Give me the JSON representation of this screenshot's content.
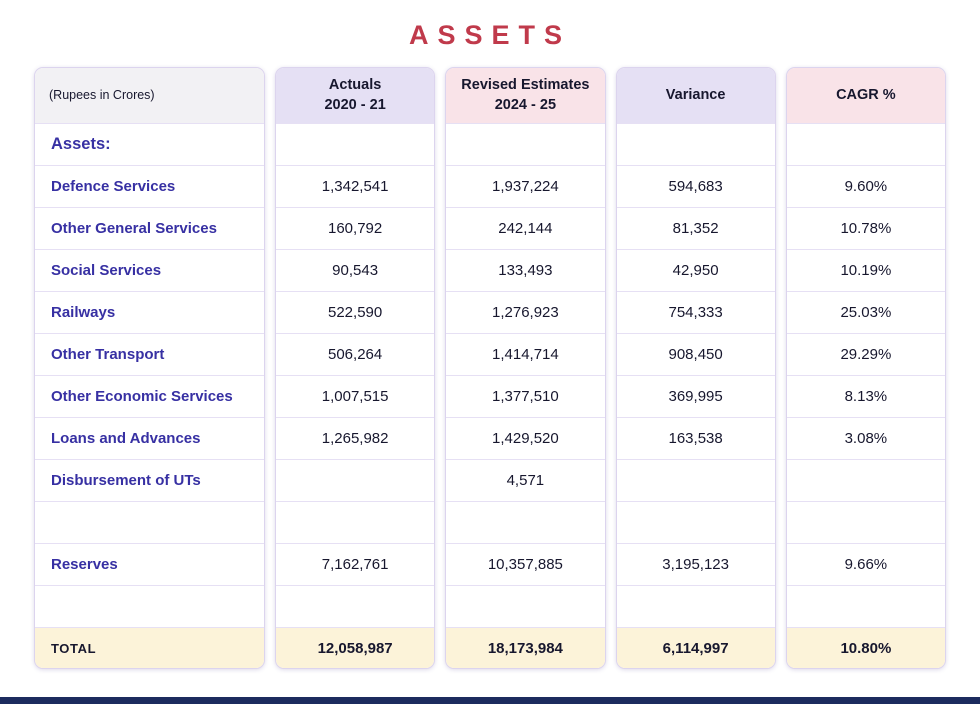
{
  "title": "ASSETS",
  "colors": {
    "title": "#C03A4B",
    "row_label": "#3730A3",
    "header_lavender": "#E5E0F4",
    "header_pink": "#F9E3E8",
    "header_gray": "#F2F1F4",
    "total_background": "#FCF3D9",
    "footer_bar": "#1C2B5E"
  },
  "table": {
    "columns": [
      {
        "line1": "(Rupees in Crores)",
        "line2": ""
      },
      {
        "line1": "Actuals",
        "line2": "2020 - 21"
      },
      {
        "line1": "Revised Estimates",
        "line2": "2024 - 25"
      },
      {
        "line1": "Variance",
        "line2": ""
      },
      {
        "line1": "CAGR %",
        "line2": ""
      }
    ],
    "rows": [
      {
        "label": "Assets:",
        "actuals": "",
        "revised": "",
        "variance": "",
        "cagr": ""
      },
      {
        "label": "Defence Services",
        "actuals": "1,342,541",
        "revised": "1,937,224",
        "variance": "594,683",
        "cagr": "9.60%"
      },
      {
        "label": "Other General Services",
        "actuals": "160,792",
        "revised": "242,144",
        "variance": "81,352",
        "cagr": "10.78%"
      },
      {
        "label": "Social Services",
        "actuals": "90,543",
        "revised": "133,493",
        "variance": "42,950",
        "cagr": "10.19%"
      },
      {
        "label": "Railways",
        "actuals": "522,590",
        "revised": "1,276,923",
        "variance": "754,333",
        "cagr": "25.03%"
      },
      {
        "label": "Other Transport",
        "actuals": "506,264",
        "revised": "1,414,714",
        "variance": "908,450",
        "cagr": "29.29%"
      },
      {
        "label": "Other Economic Services",
        "actuals": "1,007,515",
        "revised": "1,377,510",
        "variance": "369,995",
        "cagr": "8.13%"
      },
      {
        "label": "Loans and Advances",
        "actuals": "1,265,982",
        "revised": "1,429,520",
        "variance": "163,538",
        "cagr": "3.08%"
      },
      {
        "label": "Disbursement of UTs",
        "actuals": "",
        "revised": "4,571",
        "variance": "",
        "cagr": ""
      },
      {
        "label": "",
        "actuals": "",
        "revised": "",
        "variance": "",
        "cagr": ""
      },
      {
        "label": "Reserves",
        "actuals": "7,162,761",
        "revised": "10,357,885",
        "variance": "3,195,123",
        "cagr": "9.66%"
      },
      {
        "label": "",
        "actuals": "",
        "revised": "",
        "variance": "",
        "cagr": ""
      }
    ],
    "total": {
      "label": "TOTAL",
      "actuals": "12,058,987",
      "revised": "18,173,984",
      "variance": "6,114,997",
      "cagr": "10.80%"
    }
  },
  "chart_data": {
    "type": "table",
    "title": "ASSETS",
    "unit": "Rupees in Crores",
    "columns": [
      "(Rupees in Crores)",
      "Actuals 2020 - 21",
      "Revised Estimates 2024 - 25",
      "Variance",
      "CAGR %"
    ],
    "rows": [
      [
        "Defence Services",
        1342541,
        1937224,
        594683,
        "9.60%"
      ],
      [
        "Other General Services",
        160792,
        242144,
        81352,
        "10.78%"
      ],
      [
        "Social Services",
        90543,
        133493,
        42950,
        "10.19%"
      ],
      [
        "Railways",
        522590,
        1276923,
        754333,
        "25.03%"
      ],
      [
        "Other Transport",
        506264,
        1414714,
        908450,
        "29.29%"
      ],
      [
        "Other Economic Services",
        1007515,
        1377510,
        369995,
        "8.13%"
      ],
      [
        "Loans and Advances",
        1265982,
        1429520,
        163538,
        "3.08%"
      ],
      [
        "Disbursement of UTs",
        null,
        4571,
        null,
        null
      ],
      [
        "Reserves",
        7162761,
        10357885,
        3195123,
        "9.66%"
      ],
      [
        "TOTAL",
        12058987,
        18173984,
        6114997,
        "10.80%"
      ]
    ]
  }
}
